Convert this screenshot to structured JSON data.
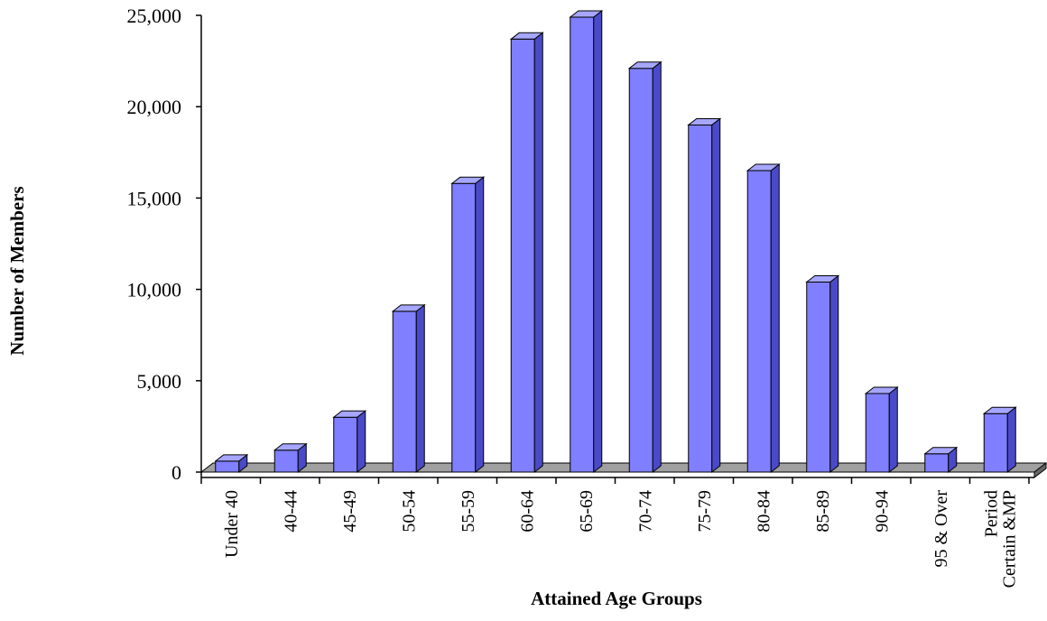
{
  "chart_data": {
    "type": "bar",
    "title": "",
    "xlabel": "Attained Age Groups",
    "ylabel": "Number of Members",
    "ylim": [
      0,
      25000
    ],
    "yticks": [
      0,
      5000,
      10000,
      15000,
      20000,
      25000
    ],
    "ytick_labels": [
      "0",
      "5,000",
      "10,000",
      "15,000",
      "20,000",
      "25,000"
    ],
    "categories": [
      "Under 40",
      "40-44",
      "45-49",
      "50-54",
      "55-59",
      "60-64",
      "65-69",
      "70-74",
      "75-79",
      "80-84",
      "85-89",
      "90-94",
      "95 & Over",
      "Period Certain &MP"
    ],
    "values": [
      600,
      1200,
      3000,
      8800,
      15800,
      23700,
      24900,
      22100,
      19000,
      16500,
      10400,
      4300,
      1000,
      3200
    ],
    "grid": false,
    "legend": "none",
    "colors": {
      "bar_front": "#7f7fff",
      "bar_side": "#4a4ac8",
      "bar_top": "#a6a6ff",
      "bar_outline": "#000000",
      "floor": "#a0a0a0"
    }
  }
}
